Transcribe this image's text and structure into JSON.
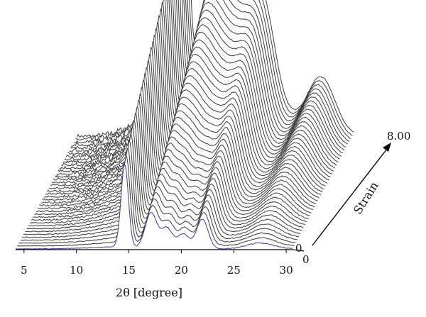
{
  "chart_data": {
    "type": "line",
    "style": "3d-waterfall",
    "x_axis": {
      "label": "2θ [degree]",
      "range": [
        4.2,
        30.6
      ],
      "ticks": [
        5,
        10,
        15,
        20,
        25,
        30
      ],
      "tick_labels": [
        "5",
        "10",
        "15",
        "20",
        "25",
        "30"
      ]
    },
    "depth_axis": {
      "label": "Strain",
      "range": [
        0,
        8.0
      ],
      "start_label": "0",
      "end_label": "8.00"
    },
    "front_trace_label": "0",
    "grid": false,
    "trace_count": 40,
    "colors": {
      "first_trace": "#3b3b9a",
      "traces": "#3a3a3a",
      "axes": "#000000"
    },
    "peaks": [
      {
        "position": 14.6,
        "first_trace_intensity": 0.55,
        "last_trace_intensity": 1.0
      },
      {
        "position": 17.1,
        "first_trace_intensity": 0.24,
        "last_trace_intensity": 0.72
      },
      {
        "position": 18.6,
        "first_trace_intensity": 0.14,
        "last_trace_intensity": 0.62
      },
      {
        "position": 20.2,
        "first_trace_intensity": 0.1,
        "last_trace_intensity": 0.5
      },
      {
        "position": 22.0,
        "first_trace_intensity": 0.2,
        "last_trace_intensity": 0.64
      },
      {
        "position": 27.5,
        "first_trace_intensity": 0.04,
        "last_trace_intensity": 0.36
      }
    ]
  }
}
